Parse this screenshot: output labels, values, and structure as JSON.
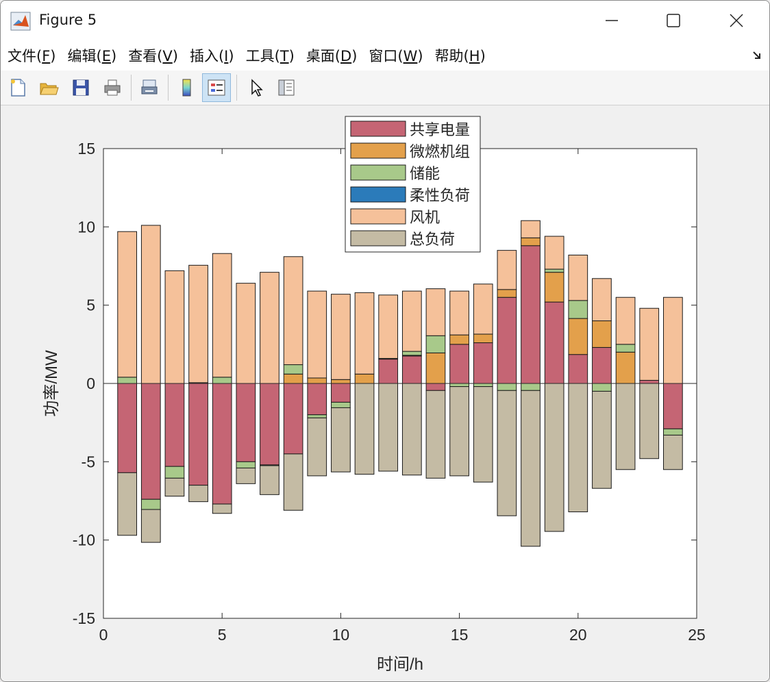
{
  "window": {
    "title": "Figure 5"
  },
  "menu": [
    {
      "label": "文件(",
      "key": "F",
      "tail": ")"
    },
    {
      "label": "编辑(",
      "key": "E",
      "tail": ")"
    },
    {
      "label": "查看(",
      "key": "V",
      "tail": ")"
    },
    {
      "label": "插入(",
      "key": "I",
      "tail": ")"
    },
    {
      "label": "工具(",
      "key": "T",
      "tail": ")"
    },
    {
      "label": "桌面(",
      "key": "D",
      "tail": ")"
    },
    {
      "label": "窗口(",
      "key": "W",
      "tail": ")"
    },
    {
      "label": "帮助(",
      "key": "H",
      "tail": ")"
    }
  ],
  "toolbar": {
    "icons": [
      "new-figure-icon",
      "open-file-icon",
      "save-icon",
      "print-icon",
      "link-plot-icon",
      "colorbar-icon",
      "legend-icon",
      "pointer-icon",
      "property-inspector-icon"
    ],
    "active": "legend-icon"
  },
  "chart_data": {
    "type": "bar",
    "stacked": true,
    "title": "",
    "xlabel": "时间/h",
    "ylabel": "功率/MW",
    "xlim": [
      0,
      25
    ],
    "ylim": [
      -15,
      15
    ],
    "xticks": [
      0,
      5,
      10,
      15,
      20,
      25
    ],
    "yticks": [
      -15,
      -10,
      -5,
      0,
      5,
      10,
      15
    ],
    "legend_position": "top-center",
    "x": [
      1,
      2,
      3,
      4,
      5,
      6,
      7,
      8,
      9,
      10,
      11,
      12,
      13,
      14,
      15,
      16,
      17,
      18,
      19,
      20,
      21,
      22,
      23,
      24
    ],
    "series": [
      {
        "name": "共享电量",
        "color": "#c56574",
        "values": [
          -5.7,
          -7.4,
          -5.3,
          -6.5,
          -7.7,
          -5.0,
          -5.2,
          -4.5,
          -2.0,
          -1.2,
          0,
          1.55,
          1.75,
          -0.45,
          2.5,
          2.6,
          5.5,
          8.8,
          5.2,
          1.85,
          2.3,
          0,
          0.2,
          -2.9
        ]
      },
      {
        "name": "微燃机组",
        "color": "#e3a04b",
        "values": [
          0,
          0,
          0,
          0,
          0,
          0,
          0,
          0.6,
          0.35,
          0.25,
          0.6,
          0.05,
          0.05,
          1.95,
          0.6,
          0.55,
          0.5,
          0.5,
          1.9,
          2.3,
          1.7,
          2.0,
          0,
          0
        ]
      },
      {
        "name": "储能",
        "color": "#a8c98a",
        "values": [
          0.4,
          -0.65,
          -0.75,
          0.05,
          0.4,
          -0.4,
          -0.05,
          0.6,
          -0.2,
          -0.35,
          0,
          0,
          0.25,
          1.1,
          -0.2,
          -0.2,
          -0.45,
          -0.45,
          0.2,
          1.15,
          -0.5,
          0.5,
          0,
          -0.4
        ]
      },
      {
        "name": "柔性负荷",
        "color": "#2b7bba",
        "values": [
          0,
          0,
          0,
          0,
          0,
          0,
          0,
          0,
          0,
          0,
          0,
          0,
          0,
          0,
          0,
          0,
          0,
          0,
          0,
          0,
          0,
          0,
          0,
          0
        ]
      },
      {
        "name": "风机",
        "color": "#f5c19a",
        "values": [
          9.3,
          10.1,
          7.2,
          7.5,
          7.9,
          6.4,
          7.1,
          6.9,
          5.55,
          5.45,
          5.2,
          4.05,
          3.85,
          3.0,
          2.8,
          3.2,
          2.5,
          1.1,
          2.1,
          2.9,
          2.7,
          3.0,
          4.6,
          5.5
        ]
      },
      {
        "name": "总负荷",
        "color": "#c4bba4",
        "values": [
          -4.0,
          -2.1,
          -1.15,
          -1.05,
          -0.6,
          -1.0,
          -1.85,
          -3.6,
          -3.7,
          -4.1,
          -5.8,
          -5.6,
          -5.85,
          -5.6,
          -5.7,
          -6.1,
          -8.0,
          -9.95,
          -9.45,
          -8.2,
          -6.2,
          -5.5,
          -4.8,
          -2.2
        ]
      }
    ]
  }
}
